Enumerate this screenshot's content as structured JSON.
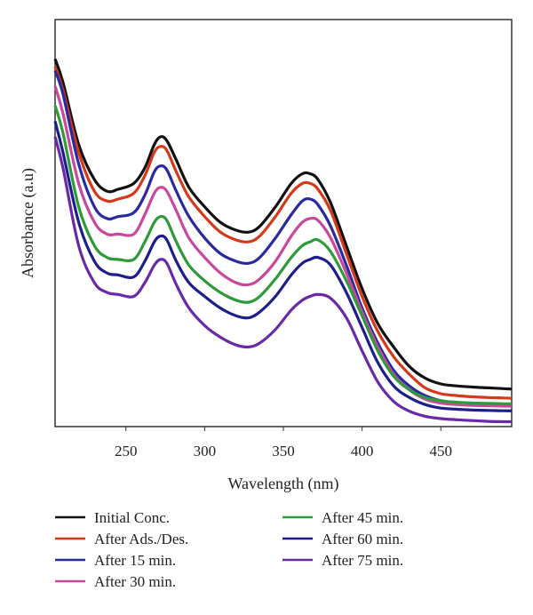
{
  "chart_data": {
    "type": "line",
    "title": "",
    "xlabel": "Wavelength (nm)",
    "ylabel": "Absorbance (a.u)",
    "xlim": [
      205,
      495
    ],
    "ylim": [
      0,
      1
    ],
    "x_ticks": [
      250,
      300,
      350,
      400,
      450
    ],
    "y_ticks_shown": false,
    "grid": false,
    "legend_position": "bottom",
    "x": [
      205,
      210,
      220,
      230,
      238,
      245,
      255,
      262,
      268,
      272,
      276,
      282,
      290,
      300,
      310,
      320,
      328,
      335,
      345,
      355,
      362,
      367,
      372,
      380,
      390,
      400,
      410,
      420,
      430,
      440,
      450,
      460,
      470,
      480,
      490,
      495
    ],
    "series": [
      {
        "name": "Initial Conc.",
        "color": "#111111",
        "values": [
          0.94,
          0.88,
          0.72,
          0.63,
          0.6,
          0.605,
          0.62,
          0.66,
          0.72,
          0.74,
          0.73,
          0.68,
          0.61,
          0.56,
          0.52,
          0.5,
          0.495,
          0.51,
          0.56,
          0.62,
          0.645,
          0.645,
          0.63,
          0.57,
          0.46,
          0.35,
          0.26,
          0.2,
          0.15,
          0.12,
          0.105,
          0.1,
          0.097,
          0.095,
          0.093,
          0.092
        ]
      },
      {
        "name": "After Ads./Des.",
        "color": "#d43a1a",
        "values": [
          0.92,
          0.86,
          0.7,
          0.6,
          0.575,
          0.58,
          0.595,
          0.64,
          0.7,
          0.715,
          0.705,
          0.65,
          0.585,
          0.535,
          0.495,
          0.475,
          0.47,
          0.485,
          0.535,
          0.595,
          0.62,
          0.62,
          0.605,
          0.55,
          0.44,
          0.33,
          0.24,
          0.175,
          0.13,
          0.095,
          0.08,
          0.075,
          0.072,
          0.07,
          0.069,
          0.068
        ]
      },
      {
        "name": "After 15 min.",
        "color": "#2a2aa0",
        "values": [
          0.91,
          0.85,
          0.67,
          0.56,
          0.53,
          0.535,
          0.545,
          0.59,
          0.65,
          0.665,
          0.655,
          0.6,
          0.535,
          0.48,
          0.44,
          0.42,
          0.415,
          0.43,
          0.48,
          0.54,
          0.575,
          0.58,
          0.565,
          0.51,
          0.41,
          0.3,
          0.21,
          0.14,
          0.1,
          0.075,
          0.062,
          0.057,
          0.055,
          0.054,
          0.053,
          0.053
        ]
      },
      {
        "name": "After 30 min.",
        "color": "#c8489e",
        "values": [
          0.87,
          0.8,
          0.62,
          0.52,
          0.49,
          0.49,
          0.49,
          0.54,
          0.595,
          0.61,
          0.6,
          0.55,
          0.48,
          0.43,
          0.39,
          0.365,
          0.36,
          0.375,
          0.42,
          0.485,
          0.52,
          0.53,
          0.525,
          0.48,
          0.39,
          0.29,
          0.2,
          0.13,
          0.09,
          0.066,
          0.056,
          0.052,
          0.05,
          0.049,
          0.048,
          0.048
        ]
      },
      {
        "name": "After 45 min.",
        "color": "#2e9a3a",
        "values": [
          0.82,
          0.75,
          0.56,
          0.46,
          0.43,
          0.425,
          0.425,
          0.47,
          0.52,
          0.535,
          0.525,
          0.47,
          0.41,
          0.37,
          0.34,
          0.32,
          0.315,
          0.33,
          0.375,
          0.43,
          0.46,
          0.47,
          0.475,
          0.445,
          0.37,
          0.28,
          0.19,
          0.125,
          0.09,
          0.07,
          0.062,
          0.058,
          0.056,
          0.055,
          0.054,
          0.054
        ]
      },
      {
        "name": "After 60 min.",
        "color": "#1e1e8a",
        "values": [
          0.78,
          0.7,
          0.52,
          0.42,
          0.39,
          0.385,
          0.38,
          0.42,
          0.47,
          0.485,
          0.475,
          0.42,
          0.365,
          0.33,
          0.3,
          0.28,
          0.275,
          0.29,
          0.33,
          0.385,
          0.415,
          0.425,
          0.43,
          0.41,
          0.34,
          0.25,
          0.16,
          0.1,
          0.07,
          0.052,
          0.043,
          0.04,
          0.038,
          0.037,
          0.036,
          0.036
        ]
      },
      {
        "name": "After 75 min.",
        "color": "#6a2aa8",
        "values": [
          0.74,
          0.66,
          0.46,
          0.365,
          0.34,
          0.335,
          0.33,
          0.365,
          0.41,
          0.425,
          0.415,
          0.36,
          0.3,
          0.255,
          0.225,
          0.205,
          0.2,
          0.21,
          0.245,
          0.295,
          0.32,
          0.33,
          0.335,
          0.325,
          0.275,
          0.19,
          0.11,
          0.06,
          0.035,
          0.022,
          0.016,
          0.013,
          0.011,
          0.009,
          0.008,
          0.008
        ]
      }
    ]
  }
}
